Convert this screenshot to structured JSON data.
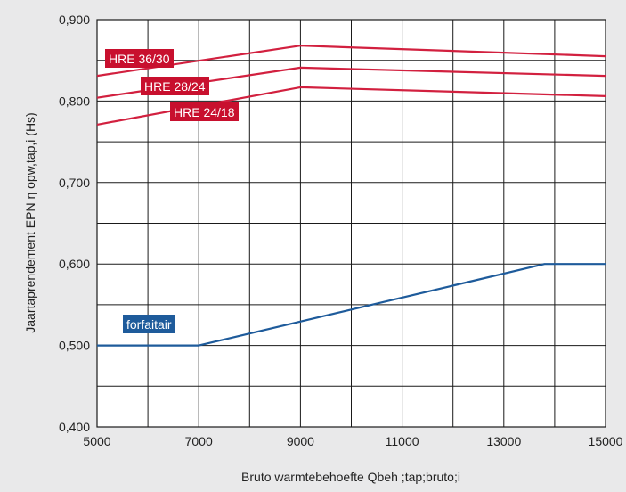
{
  "chart_data": {
    "type": "line",
    "xlabel": "Bruto warmtebehoefte Qbeh ;tap;bruto;i",
    "ylabel": "Jaartaprendement EPN η opw,tap,i (Hs)",
    "xlim": [
      5000,
      15000
    ],
    "ylim": [
      0.4,
      0.9
    ],
    "x_ticks": [
      5000,
      7000,
      9000,
      11000,
      13000,
      15000
    ],
    "x_tick_labels": [
      "5000",
      "7000",
      "9000",
      "11000",
      "13000",
      "15000"
    ],
    "y_ticks": [
      0.4,
      0.5,
      0.6,
      0.7,
      0.8,
      0.9
    ],
    "y_tick_labels": [
      "0,400",
      "0,500",
      "0,600",
      "0,700",
      "0,800",
      "0,900"
    ],
    "grid": true,
    "series": [
      {
        "name": "HRE 36/30",
        "color": "#d2203f",
        "label_color": "#c8102e",
        "x": [
          5000,
          9000,
          15000
        ],
        "y": [
          0.831,
          0.868,
          0.855
        ]
      },
      {
        "name": "HRE 28/24",
        "color": "#d2203f",
        "label_color": "#c8102e",
        "x": [
          5000,
          9000,
          15000
        ],
        "y": [
          0.804,
          0.841,
          0.831
        ]
      },
      {
        "name": "HRE 24/18",
        "color": "#d2203f",
        "label_color": "#c8102e",
        "x": [
          5000,
          9000,
          15000
        ],
        "y": [
          0.771,
          0.817,
          0.806
        ]
      },
      {
        "name": "forfaitair",
        "color": "#1e5b9b",
        "label_color": "#1e5b9b",
        "x": [
          5000,
          7000,
          13800,
          15000
        ],
        "y": [
          0.5,
          0.5,
          0.6,
          0.6
        ]
      }
    ]
  }
}
